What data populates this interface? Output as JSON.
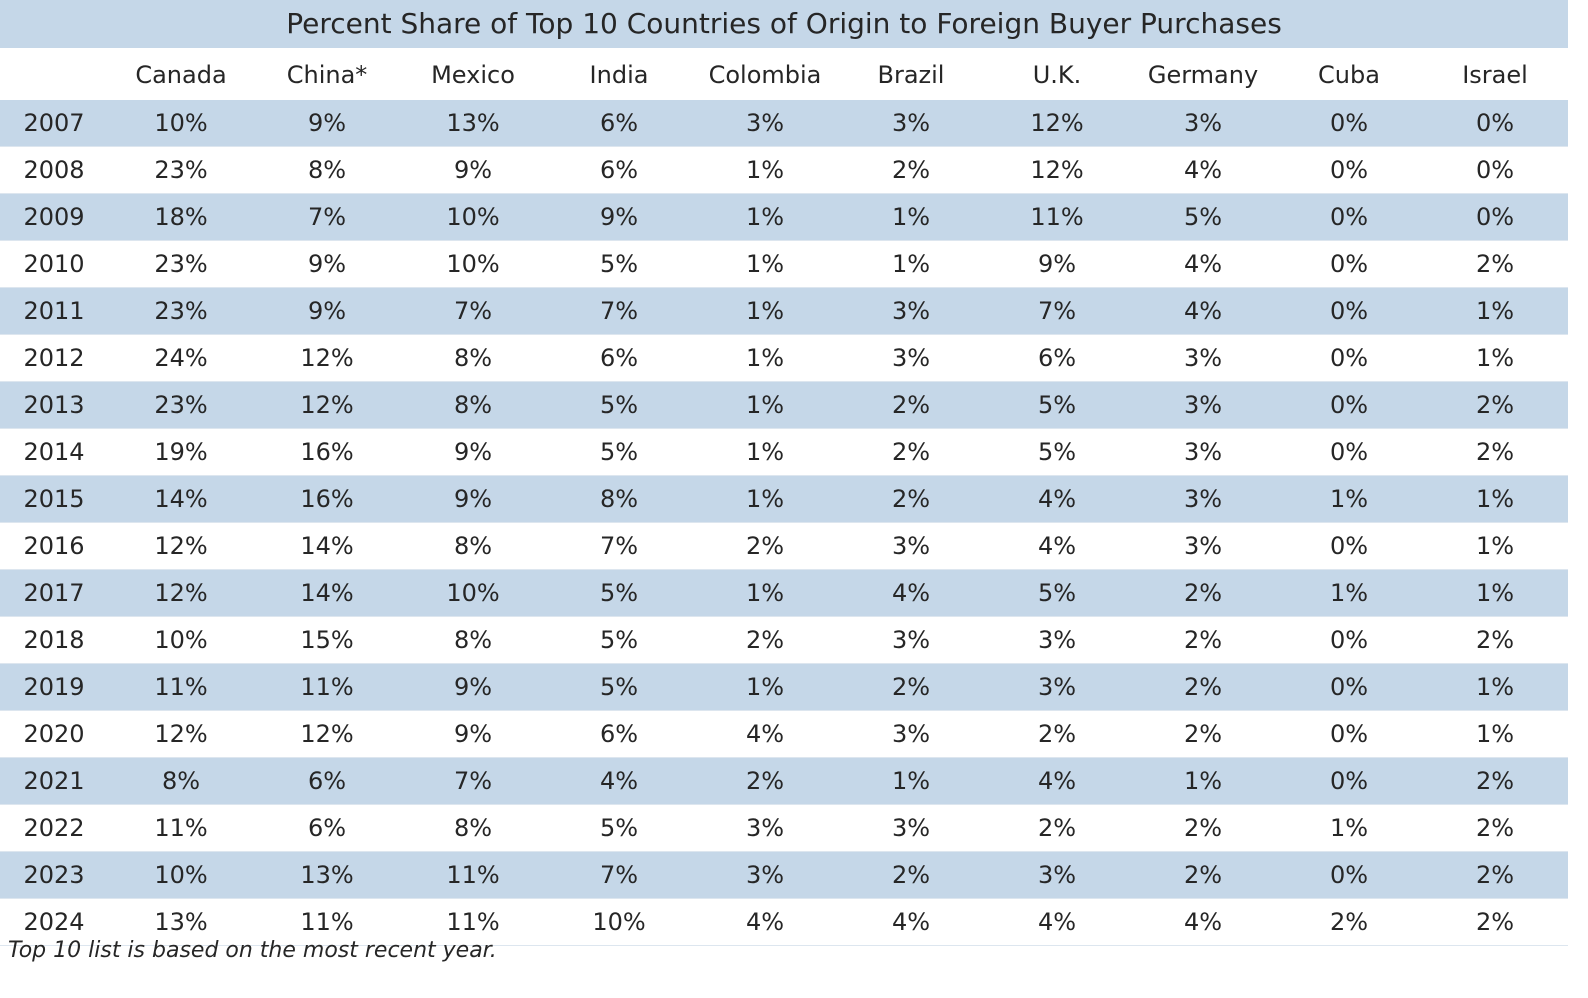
{
  "chart_data": {
    "type": "table",
    "title": "Percent Share of Top 10 Countries of Origin to Foreign Buyer Purchases",
    "columns": [
      "Canada",
      "China*",
      "Mexico",
      "India",
      "Colombia",
      "Brazil",
      "U.K.",
      "Germany",
      "Cuba",
      "Israel"
    ],
    "rows": [
      {
        "year": "2007",
        "values": [
          "10%",
          "9%",
          "13%",
          "6%",
          "3%",
          "3%",
          "12%",
          "3%",
          "0%",
          "0%"
        ]
      },
      {
        "year": "2008",
        "values": [
          "23%",
          "8%",
          "9%",
          "6%",
          "1%",
          "2%",
          "12%",
          "4%",
          "0%",
          "0%"
        ]
      },
      {
        "year": "2009",
        "values": [
          "18%",
          "7%",
          "10%",
          "9%",
          "1%",
          "1%",
          "11%",
          "5%",
          "0%",
          "0%"
        ]
      },
      {
        "year": "2010",
        "values": [
          "23%",
          "9%",
          "10%",
          "5%",
          "1%",
          "1%",
          "9%",
          "4%",
          "0%",
          "2%"
        ]
      },
      {
        "year": "2011",
        "values": [
          "23%",
          "9%",
          "7%",
          "7%",
          "1%",
          "3%",
          "7%",
          "4%",
          "0%",
          "1%"
        ]
      },
      {
        "year": "2012",
        "values": [
          "24%",
          "12%",
          "8%",
          "6%",
          "1%",
          "3%",
          "6%",
          "3%",
          "0%",
          "1%"
        ]
      },
      {
        "year": "2013",
        "values": [
          "23%",
          "12%",
          "8%",
          "5%",
          "1%",
          "2%",
          "5%",
          "3%",
          "0%",
          "2%"
        ]
      },
      {
        "year": "2014",
        "values": [
          "19%",
          "16%",
          "9%",
          "5%",
          "1%",
          "2%",
          "5%",
          "3%",
          "0%",
          "2%"
        ]
      },
      {
        "year": "2015",
        "values": [
          "14%",
          "16%",
          "9%",
          "8%",
          "1%",
          "2%",
          "4%",
          "3%",
          "1%",
          "1%"
        ]
      },
      {
        "year": "2016",
        "values": [
          "12%",
          "14%",
          "8%",
          "7%",
          "2%",
          "3%",
          "4%",
          "3%",
          "0%",
          "1%"
        ]
      },
      {
        "year": "2017",
        "values": [
          "12%",
          "14%",
          "10%",
          "5%",
          "1%",
          "4%",
          "5%",
          "2%",
          "1%",
          "1%"
        ]
      },
      {
        "year": "2018",
        "values": [
          "10%",
          "15%",
          "8%",
          "5%",
          "2%",
          "3%",
          "3%",
          "2%",
          "0%",
          "2%"
        ]
      },
      {
        "year": "2019",
        "values": [
          "11%",
          "11%",
          "9%",
          "5%",
          "1%",
          "2%",
          "3%",
          "2%",
          "0%",
          "1%"
        ]
      },
      {
        "year": "2020",
        "values": [
          "12%",
          "12%",
          "9%",
          "6%",
          "4%",
          "3%",
          "2%",
          "2%",
          "0%",
          "1%"
        ]
      },
      {
        "year": "2021",
        "values": [
          "8%",
          "6%",
          "7%",
          "4%",
          "2%",
          "1%",
          "4%",
          "1%",
          "0%",
          "2%"
        ]
      },
      {
        "year": "2022",
        "values": [
          "11%",
          "6%",
          "8%",
          "5%",
          "3%",
          "3%",
          "2%",
          "2%",
          "1%",
          "2%"
        ]
      },
      {
        "year": "2023",
        "values": [
          "10%",
          "13%",
          "11%",
          "7%",
          "3%",
          "2%",
          "3%",
          "2%",
          "0%",
          "2%"
        ]
      },
      {
        "year": "2024",
        "values": [
          "13%",
          "11%",
          "11%",
          "10%",
          "4%",
          "4%",
          "4%",
          "4%",
          "2%",
          "2%"
        ]
      }
    ],
    "footnote": "Top 10 list is based on the most recent year."
  },
  "colors": {
    "band": "#c5d7e8",
    "text": "#262626"
  }
}
